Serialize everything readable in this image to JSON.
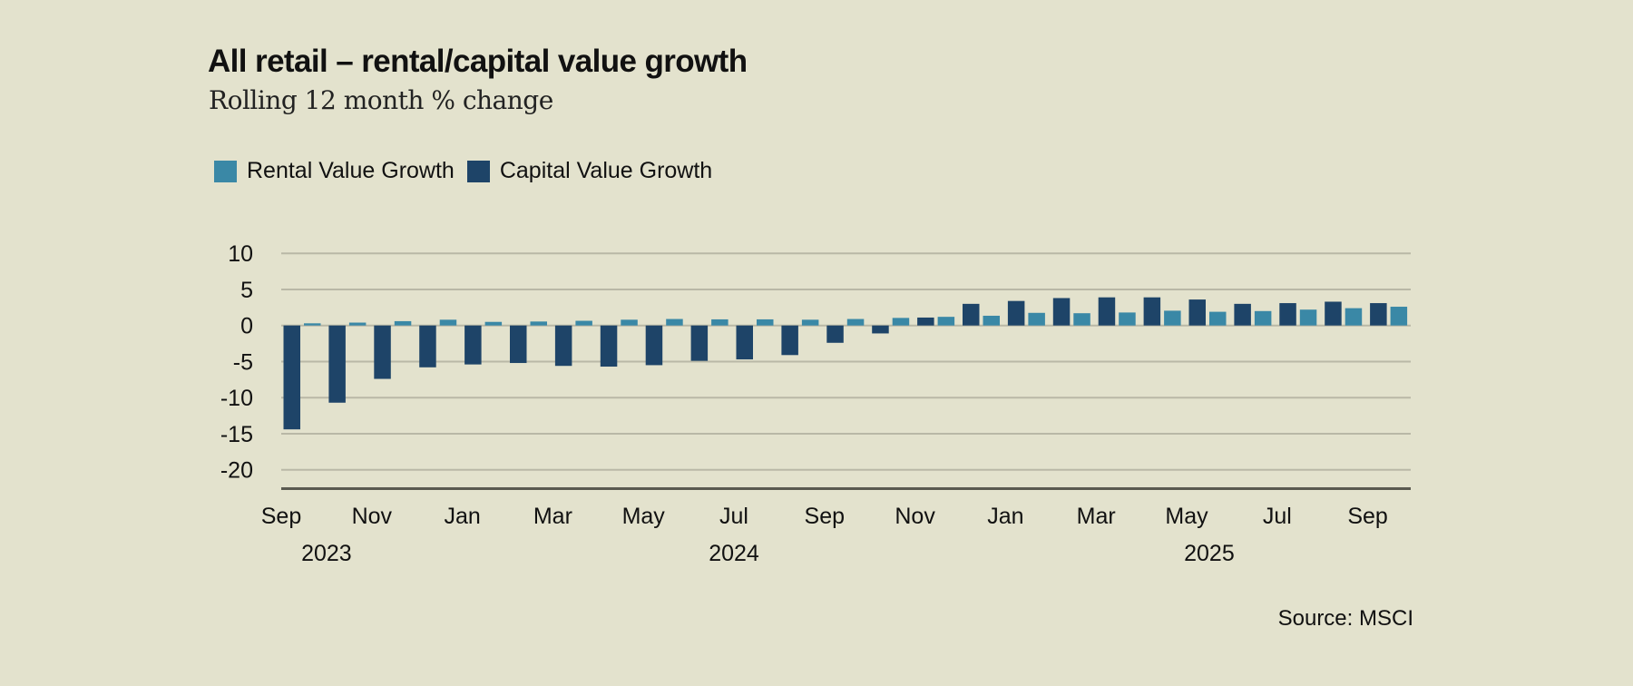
{
  "header": {
    "title": "All retail – rental/capital value growth",
    "subtitle": "Rolling 12 month % change"
  },
  "legend": [
    {
      "label": "Rental Value Growth",
      "color": "#3a88a6"
    },
    {
      "label": "Capital Value Growth",
      "color": "#1e4468"
    }
  ],
  "footer": {
    "source": "Source: MSCI"
  },
  "colors": {
    "background": "#e3e2cd",
    "rental": "#3a88a6",
    "capital": "#1e4468",
    "grid": "#b9b8a6",
    "axis": "#5a5a50"
  },
  "chart_data": {
    "type": "bar",
    "title": "All retail – rental/capital value growth",
    "subtitle": "Rolling 12 month % change",
    "xlabel": "",
    "ylabel": "",
    "ylim": [
      -22.5,
      10
    ],
    "yticks": [
      10,
      5,
      0,
      -5,
      -10,
      -15,
      -20
    ],
    "grid": true,
    "legend_position": "top-left",
    "categories": [
      "Sep 2023",
      "Oct 2023",
      "Nov 2023",
      "Dec 2023",
      "Jan 2024",
      "Feb 2024",
      "Mar 2024",
      "Apr 2024",
      "May 2024",
      "Jun 2024",
      "Jul 2024",
      "Aug 2024",
      "Sep 2024",
      "Oct 2024",
      "Nov 2024",
      "Dec 2024",
      "Jan 2025",
      "Feb 2025",
      "Mar 2025",
      "Apr 2025",
      "May 2025",
      "Jun 2025",
      "Jul 2025",
      "Aug 2025",
      "Sep 2025"
    ],
    "x_tick_labels": [
      {
        "index": 0,
        "label": "Sep"
      },
      {
        "index": 2,
        "label": "Nov"
      },
      {
        "index": 4,
        "label": "Jan"
      },
      {
        "index": 6,
        "label": "Mar"
      },
      {
        "index": 8,
        "label": "May"
      },
      {
        "index": 10,
        "label": "Jul"
      },
      {
        "index": 12,
        "label": "Sep"
      },
      {
        "index": 14,
        "label": "Nov"
      },
      {
        "index": 16,
        "label": "Jan"
      },
      {
        "index": 18,
        "label": "Mar"
      },
      {
        "index": 20,
        "label": "May"
      },
      {
        "index": 22,
        "label": "Jul"
      },
      {
        "index": 24,
        "label": "Sep"
      }
    ],
    "year_labels": [
      {
        "index": 1,
        "label": "2023"
      },
      {
        "index": 10,
        "label": "2024"
      },
      {
        "index": 20.5,
        "label": "2025"
      }
    ],
    "series": [
      {
        "name": "Capital Value Growth",
        "color": "#1e4468",
        "values": [
          -14.4,
          -10.7,
          -7.4,
          -5.8,
          -5.4,
          -5.2,
          -5.6,
          -5.7,
          -5.5,
          -4.9,
          -4.7,
          -4.1,
          -2.4,
          -1.1,
          1.1,
          3.0,
          3.4,
          3.8,
          3.9,
          3.9,
          3.6,
          3.0,
          3.1,
          3.3,
          3.1
        ]
      },
      {
        "name": "Rental Value Growth",
        "color": "#3a88a6",
        "values": [
          0.3,
          0.4,
          0.6,
          0.8,
          0.5,
          0.55,
          0.65,
          0.8,
          0.9,
          0.85,
          0.85,
          0.8,
          0.9,
          1.05,
          1.2,
          1.35,
          1.75,
          1.7,
          1.8,
          2.05,
          1.9,
          2.0,
          2.2,
          2.4,
          2.6
        ]
      }
    ]
  }
}
